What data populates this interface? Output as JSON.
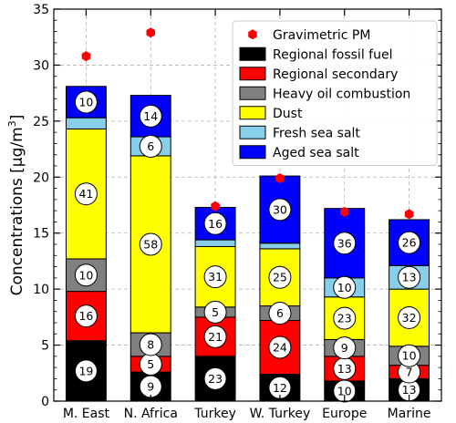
{
  "chart_data": {
    "type": "bar",
    "stacked": true,
    "ylabel": "Concentrations [μg/m³]",
    "ylabel_text": "Concentrations [μg/m",
    "ylabel_sup": "3",
    "ylabel_close": "]",
    "xlabel": "",
    "ylim": [
      0,
      35
    ],
    "yticks": [
      0,
      5,
      10,
      15,
      20,
      25,
      30,
      35
    ],
    "grid": true,
    "legend_position": "top-right",
    "categories": [
      "M. East",
      "N. Africa",
      "Turkey",
      "W. Turkey",
      "Europe",
      "Marine"
    ],
    "gravimetric_pm": {
      "name": "Gravimetric PM",
      "color": "#ff0000",
      "values": [
        30.8,
        32.9,
        17.4,
        19.9,
        16.9,
        16.7
      ]
    },
    "series": [
      {
        "name": "Regional fossil fuel",
        "color": "#000000",
        "values": [
          5.4,
          2.6,
          4.0,
          2.4,
          1.8,
          2.0
        ],
        "labels": [
          "19",
          "9",
          "23",
          "12",
          "10",
          "13"
        ]
      },
      {
        "name": "Regional secondary",
        "color": "#ff0000",
        "values": [
          4.4,
          1.4,
          3.5,
          4.8,
          2.2,
          1.2
        ],
        "labels": [
          "16",
          "5",
          "21",
          "24",
          "13",
          "7"
        ]
      },
      {
        "name": "Heavy oil combustion",
        "color": "#808080",
        "values": [
          2.9,
          2.1,
          0.9,
          1.3,
          1.5,
          1.7
        ],
        "labels": [
          "10",
          "8",
          "5",
          "6",
          "9",
          "10"
        ]
      },
      {
        "name": "Dust",
        "color": "#ffff00",
        "values": [
          11.6,
          15.8,
          5.4,
          5.1,
          3.8,
          5.1
        ],
        "labels": [
          "41",
          "58",
          "31",
          "25",
          "23",
          "32"
        ]
      },
      {
        "name": "Fresh sea salt",
        "color": "#87ceeb",
        "values": [
          1.0,
          1.7,
          0.6,
          0.5,
          1.7,
          2.1
        ],
        "labels": [
          "",
          "6",
          "",
          "",
          "10",
          "13"
        ]
      },
      {
        "name": "Aged sea salt",
        "color": "#0000ff",
        "values": [
          2.8,
          3.7,
          2.9,
          6.0,
          6.2,
          4.1
        ],
        "labels": [
          "10",
          "14",
          "16",
          "30",
          "36",
          "26"
        ]
      }
    ]
  }
}
